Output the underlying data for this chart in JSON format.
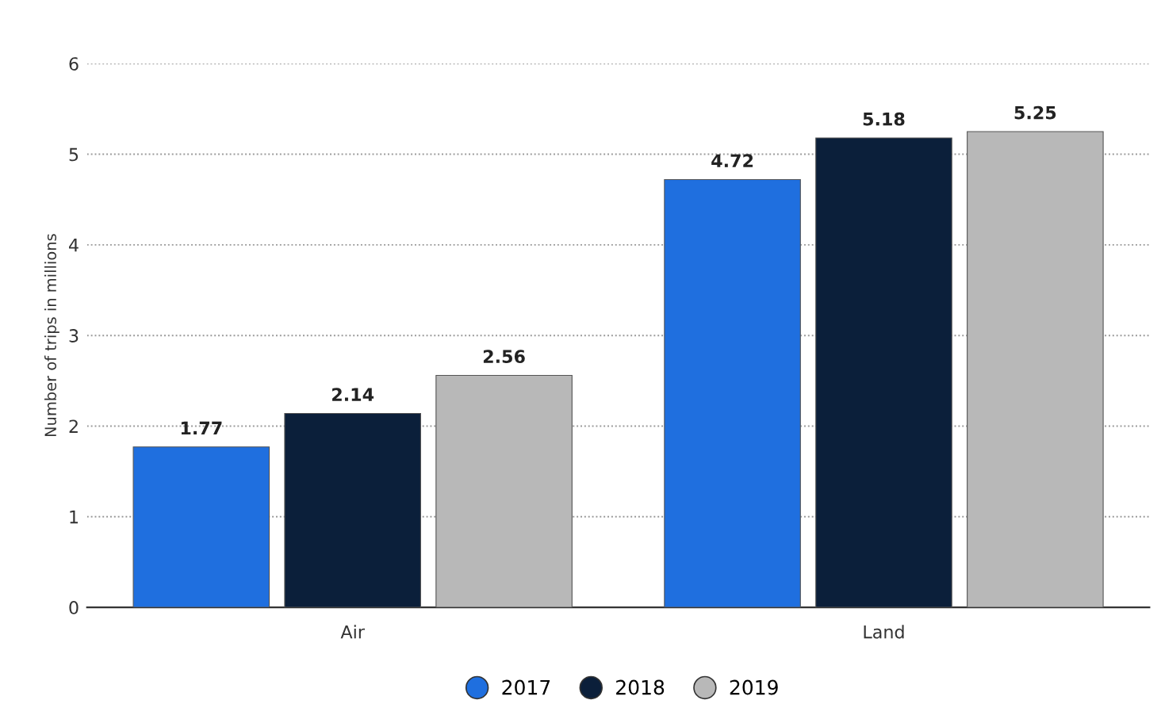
{
  "chart_data": {
    "type": "bar",
    "ylabel": "Number of trips in millions",
    "categories": [
      "Air",
      "Land"
    ],
    "series": [
      {
        "name": "2017",
        "color": "#1f6fdf",
        "values": [
          1.77,
          4.72
        ]
      },
      {
        "name": "2018",
        "color": "#0b1f3a",
        "values": [
          2.14,
          5.18
        ]
      },
      {
        "name": "2019",
        "color": "#b8b8b8",
        "values": [
          2.56,
          5.25
        ]
      }
    ],
    "ylim": [
      0,
      6
    ],
    "yticks": [
      0,
      1,
      2,
      3,
      4,
      5,
      6
    ],
    "grid": "y",
    "legend": "bottom",
    "data_labels": true
  }
}
